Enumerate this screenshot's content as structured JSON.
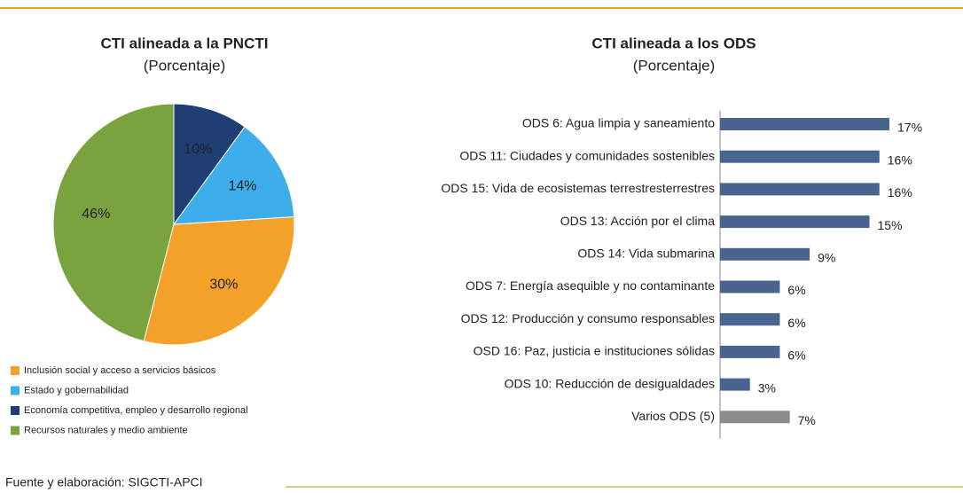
{
  "chart_data": [
    {
      "type": "pie",
      "title": "CTI alineada a la PNCTI",
      "subtitle": "(Porcentaje)",
      "categories": [
        "Inclusión social y acceso a servicios básicos",
        "Estado y gobernabilidad",
        "Economía competitiva, empleo y desarrollo regional",
        "Recursos naturales y medio ambiente"
      ],
      "values": [
        30,
        14,
        10,
        46
      ],
      "value_labels": [
        "30%",
        "14%",
        "10%",
        "46%"
      ],
      "colors": [
        "#f4a12a",
        "#3daee9",
        "#1f3f74",
        "#7aa23f"
      ]
    },
    {
      "type": "hbar",
      "title": "CTI  alineada a los ODS",
      "subtitle": "(Porcentaje)",
      "categories": [
        "ODS 6: Agua limpia y saneamiento",
        "ODS 11: Ciudades y comunidades sostenibles",
        "ODS 15: Vida de ecosistemas terrestresterrestres",
        "ODS 13: Acción por el clima",
        "ODS 14: Vida submarina",
        "ODS 7: Energía asequible y no contaminante",
        "ODS 12: Producción y consumo responsables",
        "OSD 16: Paz, justicia e instituciones sólidas",
        "ODS 10: Reducción de desigualdades",
        "Varios ODS (5)"
      ],
      "values": [
        17,
        16,
        16,
        15,
        9,
        6,
        6,
        6,
        3,
        7
      ],
      "value_labels": [
        "17%",
        "16%",
        "16%",
        "15%",
        "9%",
        "6%",
        "6%",
        "6%",
        "3%",
        "7%"
      ],
      "colors": [
        "#4a6490",
        "#4a6490",
        "#4a6490",
        "#4a6490",
        "#4a6490",
        "#4a6490",
        "#4a6490",
        "#4a6490",
        "#4a6490",
        "#8c8c8c"
      ]
    }
  ],
  "footer": "Fuente y elaboración: SIGCTI-APCI"
}
